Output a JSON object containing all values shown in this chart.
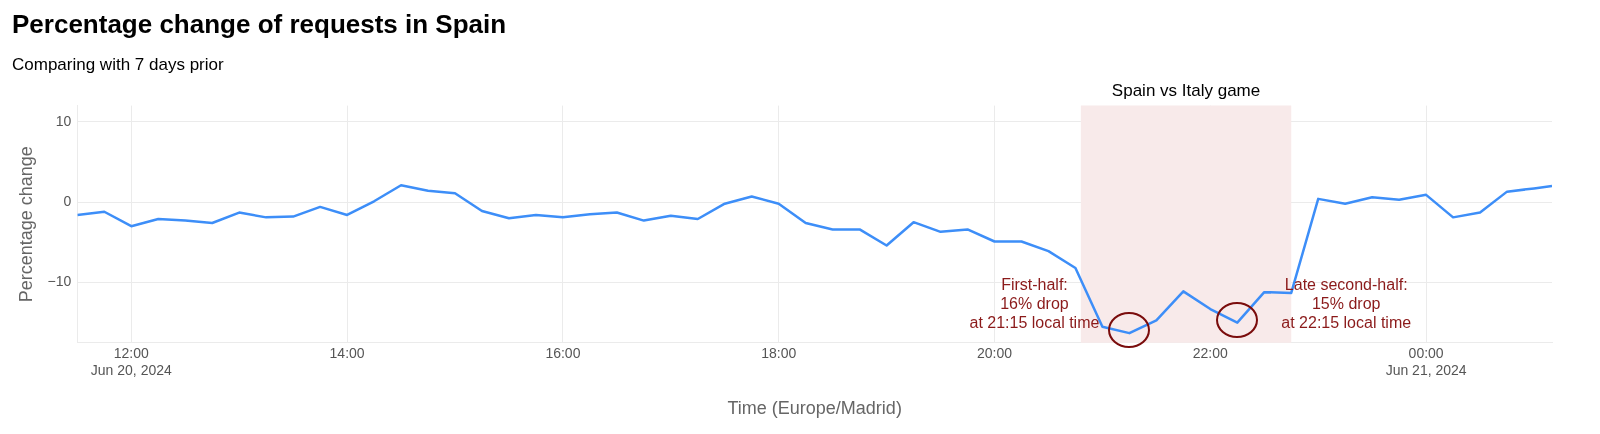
{
  "chart_data": {
    "type": "line",
    "title": "Percentage change of requests in Spain",
    "subtitle": "Comparing with 7 days prior",
    "xlabel": "Time (Europe/Madrid)",
    "ylabel": "Percentage change",
    "x": [
      "2024-06-20T11:30",
      "2024-06-20T11:45",
      "2024-06-20T12:00",
      "2024-06-20T12:15",
      "2024-06-20T12:30",
      "2024-06-20T12:45",
      "2024-06-20T13:00",
      "2024-06-20T13:15",
      "2024-06-20T13:30",
      "2024-06-20T13:45",
      "2024-06-20T14:00",
      "2024-06-20T14:15",
      "2024-06-20T14:30",
      "2024-06-20T14:45",
      "2024-06-20T15:00",
      "2024-06-20T15:15",
      "2024-06-20T15:30",
      "2024-06-20T15:45",
      "2024-06-20T16:00",
      "2024-06-20T16:15",
      "2024-06-20T16:30",
      "2024-06-20T16:45",
      "2024-06-20T17:00",
      "2024-06-20T17:15",
      "2024-06-20T17:30",
      "2024-06-20T17:45",
      "2024-06-20T18:00",
      "2024-06-20T18:15",
      "2024-06-20T18:30",
      "2024-06-20T18:45",
      "2024-06-20T19:00",
      "2024-06-20T19:15",
      "2024-06-20T19:30",
      "2024-06-20T19:45",
      "2024-06-20T20:00",
      "2024-06-20T20:15",
      "2024-06-20T20:30",
      "2024-06-20T20:45",
      "2024-06-20T21:00",
      "2024-06-20T21:15",
      "2024-06-20T21:30",
      "2024-06-20T21:45",
      "2024-06-20T22:00",
      "2024-06-20T22:15",
      "2024-06-20T22:30",
      "2024-06-20T22:45",
      "2024-06-20T23:00",
      "2024-06-20T23:15",
      "2024-06-20T23:30",
      "2024-06-20T23:45",
      "2024-06-21T00:00",
      "2024-06-21T00:15",
      "2024-06-21T00:30",
      "2024-06-21T00:45",
      "2024-06-21T01:00",
      "2024-06-21T01:10"
    ],
    "series": [
      {
        "color": "#3d8ef8",
        "values": [
          -1.6,
          -1.2,
          -3.0,
          -2.1,
          -2.3,
          -2.6,
          -1.3,
          -1.9,
          -1.8,
          -0.6,
          -1.6,
          0.1,
          2.1,
          1.4,
          1.1,
          -1.1,
          -2.0,
          -1.6,
          -1.9,
          -1.5,
          -1.3,
          -2.3,
          -1.7,
          -2.1,
          -0.2,
          0.7,
          -0.2,
          -2.6,
          -3.4,
          -3.4,
          -5.4,
          -2.5,
          -3.7,
          -3.4,
          -4.9,
          -4.9,
          -6.1,
          -8.2,
          -15.5,
          -16.3,
          -14.7,
          -11.1,
          -13.3,
          -15.0,
          -11.2,
          -11.3,
          0.4,
          -0.2,
          0.6,
          0.3,
          0.9,
          -1.9,
          -1.3,
          1.3,
          1.7,
          2.0
        ]
      }
    ],
    "xlim": [
      "2024-06-20T11:30",
      "2024-06-21T01:10"
    ],
    "xticks": [
      {
        "value": "2024-06-20T12:00",
        "label": "12:00\nJun 20, 2024"
      },
      {
        "value": "2024-06-20T14:00",
        "label": "14:00"
      },
      {
        "value": "2024-06-20T16:00",
        "label": "16:00"
      },
      {
        "value": "2024-06-20T18:00",
        "label": "18:00"
      },
      {
        "value": "2024-06-20T20:00",
        "label": "20:00"
      },
      {
        "value": "2024-06-20T22:00",
        "label": "22:00"
      },
      {
        "value": "2024-06-21T00:00",
        "label": "00:00\nJun 21, 2024"
      }
    ],
    "ylim": [
      -17.5,
      12
    ],
    "yticks": [
      -10,
      0,
      10
    ],
    "bands": [
      {
        "axis": "x",
        "from": "2024-06-20T20:48",
        "to": "2024-06-20T22:45",
        "label": "Spain vs Italy game",
        "color": "#f8eaea"
      }
    ],
    "annotations": [
      {
        "text": "First-half:\n16% drop\nat 21:15 local time",
        "x": "2024-06-20T21:15",
        "y": -16.3
      },
      {
        "text": "Late second-half:\n15% drop\nat 22:15 local time",
        "x": "2024-06-20T22:15",
        "y": -15.0
      }
    ],
    "grid": true,
    "legend": false,
    "marker": "none",
    "line_style": "solid"
  }
}
